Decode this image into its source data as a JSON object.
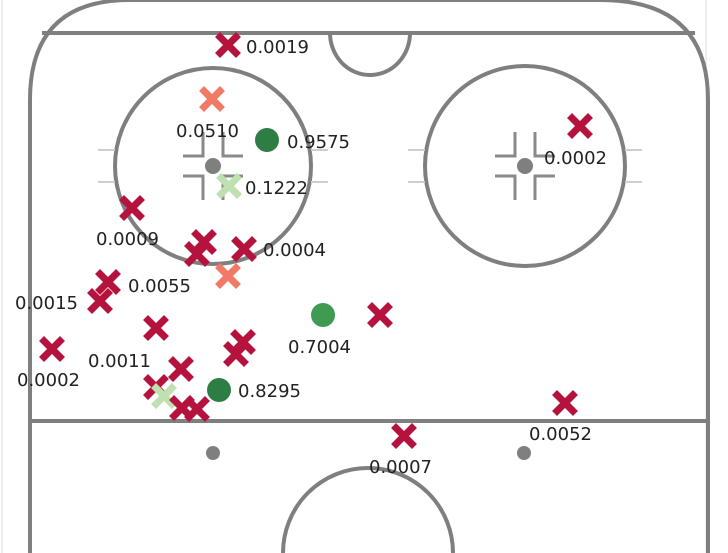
{
  "colors": {
    "miss": "#b5123e",
    "miss_light": "#f07a66",
    "miss_pale": "#bfe0b0",
    "goal_dark": "#2e7d45",
    "goal_mid": "#3f9a52",
    "rink_line": "#7f7f7f"
  },
  "chart_data": {
    "type": "scatter",
    "title": "",
    "xlabel": "",
    "ylabel": "",
    "xlim": [
      0,
      728
    ],
    "ylim": [
      553,
      0
    ],
    "legend": "none",
    "grid": false,
    "points": [
      {
        "x": 228,
        "y": 45,
        "marker": "x",
        "tone": "miss",
        "label": "0.0019",
        "lx": 246,
        "ly": 53
      },
      {
        "x": 212,
        "y": 99,
        "marker": "x",
        "tone": "miss_light",
        "label": "0.0510",
        "lx": 176,
        "ly": 137
      },
      {
        "x": 267,
        "y": 140,
        "marker": "o",
        "tone": "goal_dark",
        "label": "0.9575",
        "lx": 287,
        "ly": 148
      },
      {
        "x": 580,
        "y": 126,
        "marker": "x",
        "tone": "miss",
        "label": "0.0002",
        "lx": 544,
        "ly": 164
      },
      {
        "x": 229,
        "y": 186,
        "marker": "x",
        "tone": "miss_pale",
        "label": "0.1222",
        "lx": 245,
        "ly": 194
      },
      {
        "x": 132,
        "y": 208,
        "marker": "x",
        "tone": "miss",
        "label": "0.0009",
        "lx": 96,
        "ly": 245
      },
      {
        "x": 244,
        "y": 249,
        "marker": "x",
        "tone": "miss",
        "label": "0.0004",
        "lx": 263,
        "ly": 256
      },
      {
        "x": 108,
        "y": 282,
        "marker": "x",
        "tone": "miss",
        "label": "0.0055",
        "lx": 128,
        "ly": 292
      },
      {
        "x": 100,
        "y": 301,
        "marker": "x",
        "tone": "miss",
        "label": "0.0015",
        "lx": 15,
        "ly": 309
      },
      {
        "x": 323,
        "y": 315,
        "marker": "o",
        "tone": "goal_mid",
        "label": "0.7004",
        "lx": 288,
        "ly": 353
      },
      {
        "x": 52,
        "y": 349,
        "marker": "x",
        "tone": "miss",
        "label": "0.0002",
        "lx": 17,
        "ly": 386
      },
      {
        "x": 156,
        "y": 328,
        "marker": "x",
        "tone": "miss",
        "label": "0.0011",
        "lx": 88,
        "ly": 367
      },
      {
        "x": 219,
        "y": 390,
        "marker": "o",
        "tone": "goal_dark",
        "label": "0.8295",
        "lx": 238,
        "ly": 397
      },
      {
        "x": 565,
        "y": 403,
        "marker": "x",
        "tone": "miss",
        "label": "0.0052",
        "lx": 529,
        "ly": 440
      },
      {
        "x": 404,
        "y": 436,
        "marker": "x",
        "tone": "miss",
        "label": "0.0007",
        "lx": 369,
        "ly": 473
      },
      {
        "x": 204,
        "y": 242,
        "marker": "x",
        "tone": "miss",
        "label": ""
      },
      {
        "x": 197,
        "y": 254,
        "marker": "x",
        "tone": "miss",
        "label": ""
      },
      {
        "x": 228,
        "y": 276,
        "marker": "x",
        "tone": "miss_light",
        "label": ""
      },
      {
        "x": 380,
        "y": 315,
        "marker": "x",
        "tone": "miss",
        "label": ""
      },
      {
        "x": 243,
        "y": 342,
        "marker": "x",
        "tone": "miss",
        "label": ""
      },
      {
        "x": 236,
        "y": 354,
        "marker": "x",
        "tone": "miss",
        "label": ""
      },
      {
        "x": 181,
        "y": 369,
        "marker": "x",
        "tone": "miss",
        "label": ""
      },
      {
        "x": 156,
        "y": 387,
        "marker": "x",
        "tone": "miss",
        "label": ""
      },
      {
        "x": 164,
        "y": 396,
        "marker": "x",
        "tone": "miss_pale",
        "label": ""
      },
      {
        "x": 182,
        "y": 408,
        "marker": "x",
        "tone": "miss",
        "label": ""
      },
      {
        "x": 197,
        "y": 409,
        "marker": "x",
        "tone": "miss",
        "label": ""
      }
    ]
  }
}
